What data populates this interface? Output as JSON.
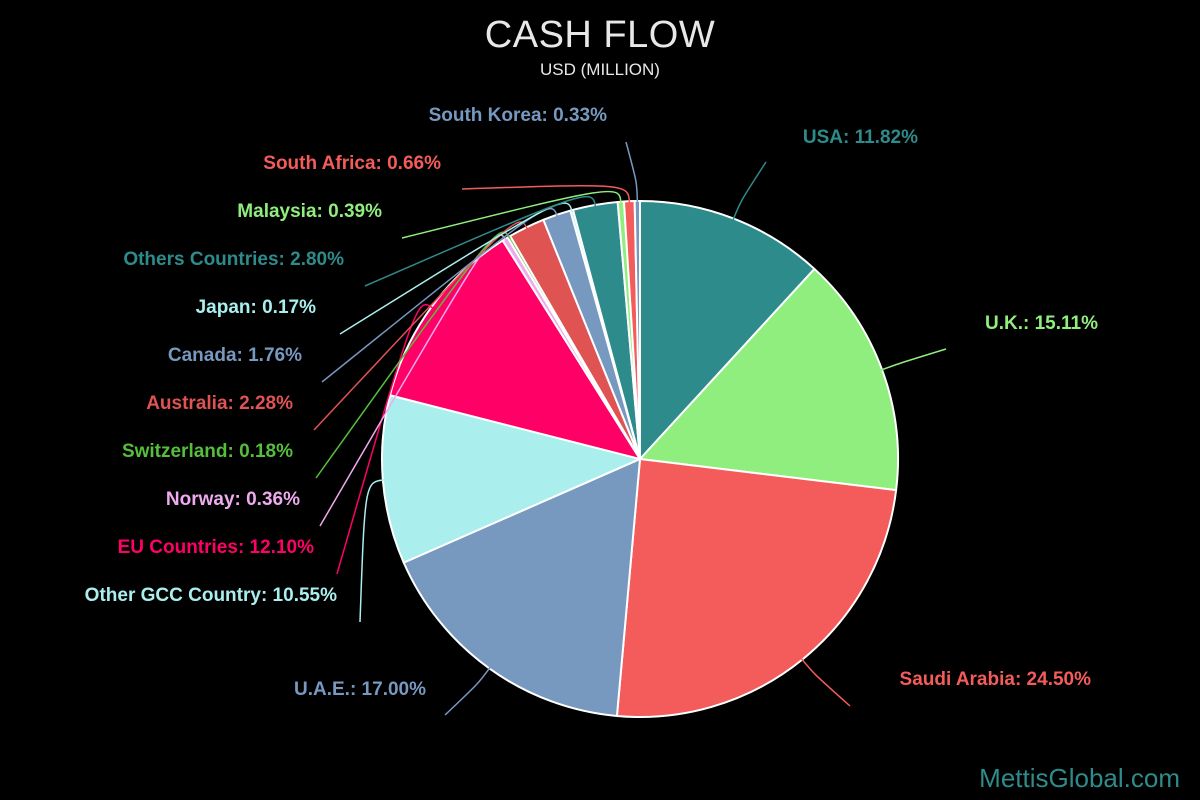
{
  "chart_data": {
    "type": "pie",
    "title": "CASH FLOW",
    "subtitle": "USD (MILLION)",
    "slices": [
      {
        "label": "USA",
        "value": 11.82,
        "display": "USA: 11.82%",
        "color": "#2e8b8b"
      },
      {
        "label": "U.K.",
        "value": 15.11,
        "display": "U.K.: 15.11%",
        "color": "#90ee7e"
      },
      {
        "label": "Saudi Arabia",
        "value": 24.5,
        "display": "Saudi Arabia: 24.50%",
        "color": "#f45b5b"
      },
      {
        "label": "U.A.E.",
        "value": 17.0,
        "display": "U.A.E.: 17.00%",
        "color": "#7798bf"
      },
      {
        "label": "Other GCC Country",
        "value": 10.55,
        "display": "Other GCC Country: 10.55%",
        "color": "#aaeeee"
      },
      {
        "label": "EU Countries",
        "value": 12.1,
        "display": "EU Countries: 12.10%",
        "color": "#ff0066"
      },
      {
        "label": "Norway",
        "value": 0.36,
        "display": "Norway: 0.36%",
        "color": "#eeaaee"
      },
      {
        "label": "Switzerland",
        "value": 0.18,
        "display": "Switzerland: 0.18%",
        "color": "#55bf3b"
      },
      {
        "label": "Australia",
        "value": 2.28,
        "display": "Australia: 2.28%",
        "color": "#df5353"
      },
      {
        "label": "Canada",
        "value": 1.76,
        "display": "Canada: 1.76%",
        "color": "#7798bf"
      },
      {
        "label": "Japan",
        "value": 0.17,
        "display": "Japan: 0.17%",
        "color": "#aaeeee"
      },
      {
        "label": "Others Countries",
        "value": 2.8,
        "display": "Others Countries: 2.80%",
        "color": "#2e8b8b"
      },
      {
        "label": "Malaysia",
        "value": 0.39,
        "display": "Malaysia: 0.39%",
        "color": "#90ee7e"
      },
      {
        "label": "South Africa",
        "value": 0.66,
        "display": "South Africa: 0.66%",
        "color": "#f45b5b"
      },
      {
        "label": "South Korea",
        "value": 0.33,
        "display": "South Korea: 0.33%",
        "color": "#7798bf"
      }
    ]
  },
  "watermark": "MettisGlobal.com"
}
